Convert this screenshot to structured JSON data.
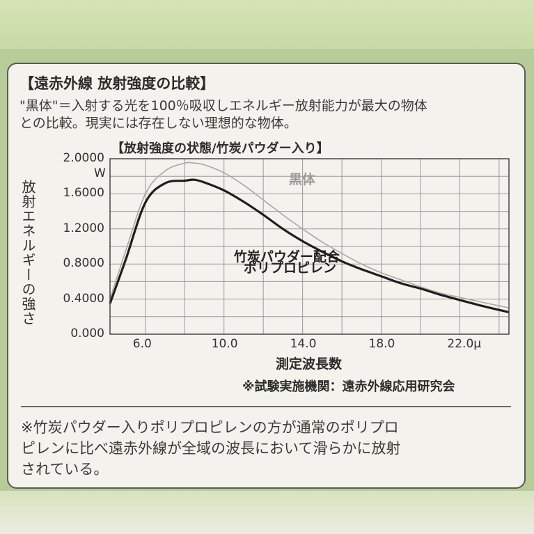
{
  "heading": "【遠赤外線 放射強度の比較】",
  "description": [
    "\"黒体\"＝入射する光を100％吸収しエネルギー放射能力が最大の物体",
    "との比較。現実には存在しない理想的な物体。"
  ],
  "source": "※試験実施機関：遠赤外線応用研究会",
  "note": [
    "※竹炭パウダー入りポリプロピレンの方が通常のポリプロ",
    "ピレンに比べ遠赤外線が全域の波長において滑らかに放射",
    "されている。"
  ],
  "chart_data": {
    "type": "line",
    "title": "【放射強度の状態/竹炭パウダー入り】",
    "ylabel": "放射エネルギーの強さ",
    "yunit": "W",
    "xlabel": "測定波長数",
    "xlim": [
      4.2,
      24.5
    ],
    "ylim": [
      0,
      2.0
    ],
    "grid": true,
    "yticks": [
      {
        "value": 0.0,
        "label": "0.000"
      },
      {
        "value": 0.4,
        "label": "0.4000"
      },
      {
        "value": 0.8,
        "label": "0.8000"
      },
      {
        "value": 1.2,
        "label": "1.2000"
      },
      {
        "value": 1.6,
        "label": "1.6000"
      },
      {
        "value": 2.0,
        "label": "2.0000"
      }
    ],
    "xticks": [
      {
        "value": 6,
        "label": "6.0"
      },
      {
        "value": 10,
        "label": "10.0"
      },
      {
        "value": 14,
        "label": "14.0"
      },
      {
        "value": 18,
        "label": "18.0"
      },
      {
        "value": 22,
        "label": "22.0μ"
      }
    ],
    "series": [
      {
        "name": "黒体",
        "color": "#a8a8a8",
        "x": [
          4.2,
          5.0,
          6.0,
          7.0,
          8.0,
          8.5,
          9.0,
          10.0,
          11.0,
          12.0,
          13.0,
          14.0,
          15.0,
          16.0,
          17.0,
          18.0,
          19.0,
          20.0,
          21.0,
          22.0,
          23.0,
          24.5
        ],
        "y": [
          0.4,
          0.95,
          1.6,
          1.86,
          1.95,
          1.95,
          1.93,
          1.84,
          1.7,
          1.53,
          1.36,
          1.2,
          1.05,
          0.92,
          0.8,
          0.7,
          0.62,
          0.54,
          0.47,
          0.42,
          0.37,
          0.3
        ]
      },
      {
        "name": "竹炭パウダー配合 ポリプロピレン",
        "color": "#1e1e1e",
        "x": [
          4.2,
          5.0,
          6.0,
          7.0,
          8.0,
          8.5,
          9.0,
          10.0,
          11.0,
          12.0,
          13.0,
          14.0,
          15.0,
          16.0,
          17.0,
          18.0,
          19.0,
          20.0,
          21.0,
          22.0,
          23.0,
          24.5
        ],
        "y": [
          0.35,
          0.85,
          1.5,
          1.72,
          1.75,
          1.76,
          1.73,
          1.64,
          1.51,
          1.36,
          1.2,
          1.06,
          0.94,
          0.83,
          0.74,
          0.66,
          0.58,
          0.52,
          0.45,
          0.39,
          0.33,
          0.25
        ]
      }
    ],
    "annotations": {
      "blackbody": "黒体",
      "material_line1": "竹炭パウダー配合",
      "material_line2": "ポリプロピレン"
    }
  }
}
